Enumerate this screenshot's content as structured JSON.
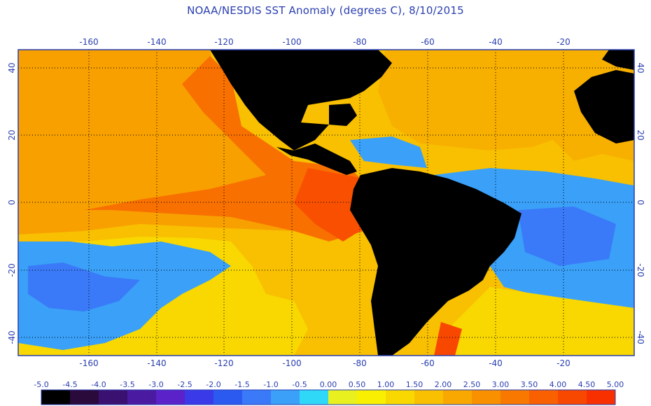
{
  "title": "NOAA/NESDIS SST Anomaly (degrees C), 8/10/2015",
  "map": {
    "lon_range": [
      -180,
      0
    ],
    "lat_range": [
      -46,
      46
    ],
    "lon_ticks": [
      "-160",
      "-140",
      "-120",
      "-100",
      "-80",
      "-60",
      "-40",
      "-20"
    ],
    "lat_ticks_left": [
      "40",
      "20",
      "0",
      "-20",
      "-40"
    ],
    "lat_ticks_right": [
      "40",
      "20",
      "0",
      "-20",
      "-40"
    ],
    "land_color": "#000000",
    "grid_color": "#000000",
    "frame_color": "#2a3fb0"
  },
  "legend": {
    "labels": [
      "-5.0",
      "-4.5",
      "-4.0",
      "-3.5",
      "-3.0",
      "-2.5",
      "-2.0",
      "-1.5",
      "-1.0",
      "-0.5",
      "0.00",
      "0.50",
      "1.00",
      "1.50",
      "2.00",
      "2.50",
      "3.00",
      "3.50",
      "4.00",
      "4.50",
      "5.00"
    ],
    "colors": [
      "#000000",
      "#2a0a3a",
      "#3a1070",
      "#4a1aa0",
      "#5a22c8",
      "#3a3ae8",
      "#2a5af0",
      "#3a7af8",
      "#3aa0f8",
      "#30d8f8",
      "#e8f020",
      "#f8f000",
      "#f8d800",
      "#f8c000",
      "#f8a800",
      "#f89000",
      "#f87800",
      "#f86000",
      "#f84800",
      "#f83000"
    ]
  }
}
